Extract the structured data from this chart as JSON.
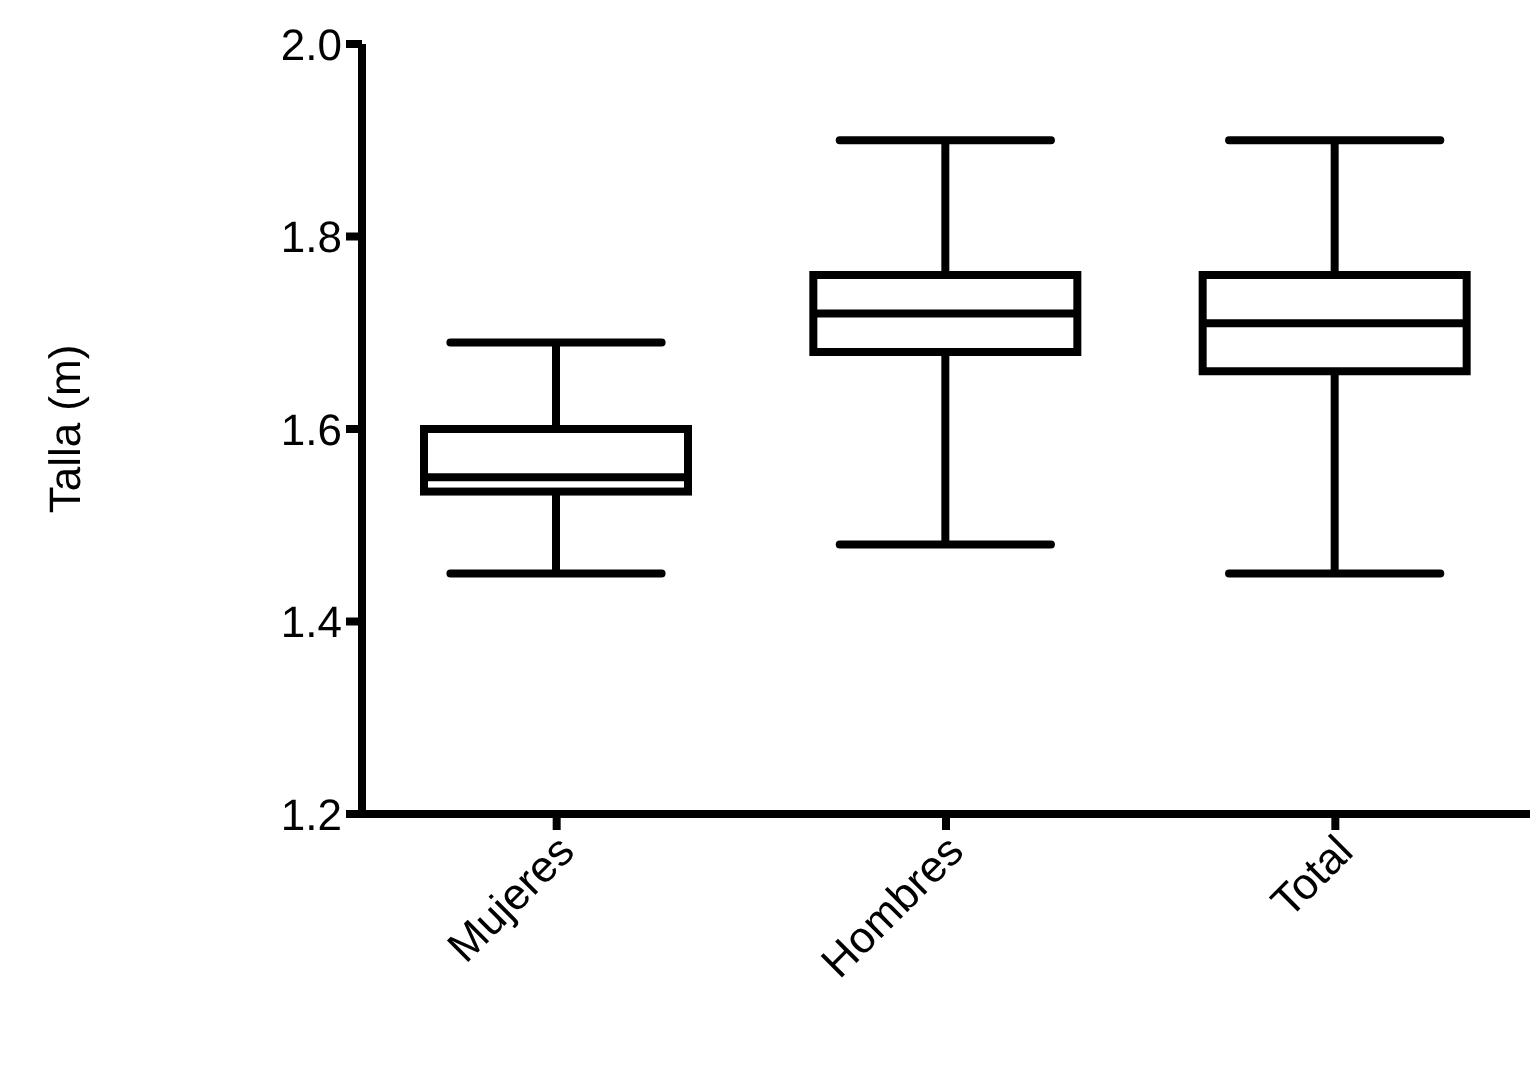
{
  "chart_data": {
    "type": "box",
    "ylabel": "Talla (m)",
    "categories": [
      "Mujeres",
      "Hombres",
      "Total"
    ],
    "boxes": [
      {
        "low": 1.45,
        "q1": 1.535,
        "median": 1.55,
        "q3": 1.6,
        "high": 1.69
      },
      {
        "low": 1.48,
        "q1": 1.68,
        "median": 1.72,
        "q3": 1.76,
        "high": 1.9
      },
      {
        "low": 1.45,
        "q1": 1.66,
        "median": 1.71,
        "q3": 1.76,
        "high": 1.9
      }
    ],
    "color": "#000000",
    "ylim": [
      1.2,
      2.0
    ],
    "yticks": [
      {
        "value": 1.2,
        "label": "1.2"
      },
      {
        "value": 1.4,
        "label": "1.4"
      },
      {
        "value": 1.6,
        "label": "1.6"
      },
      {
        "value": 1.8,
        "label": "1.8"
      },
      {
        "value": 2.0,
        "label": "2.0"
      }
    ],
    "grid": false,
    "legend": false
  }
}
